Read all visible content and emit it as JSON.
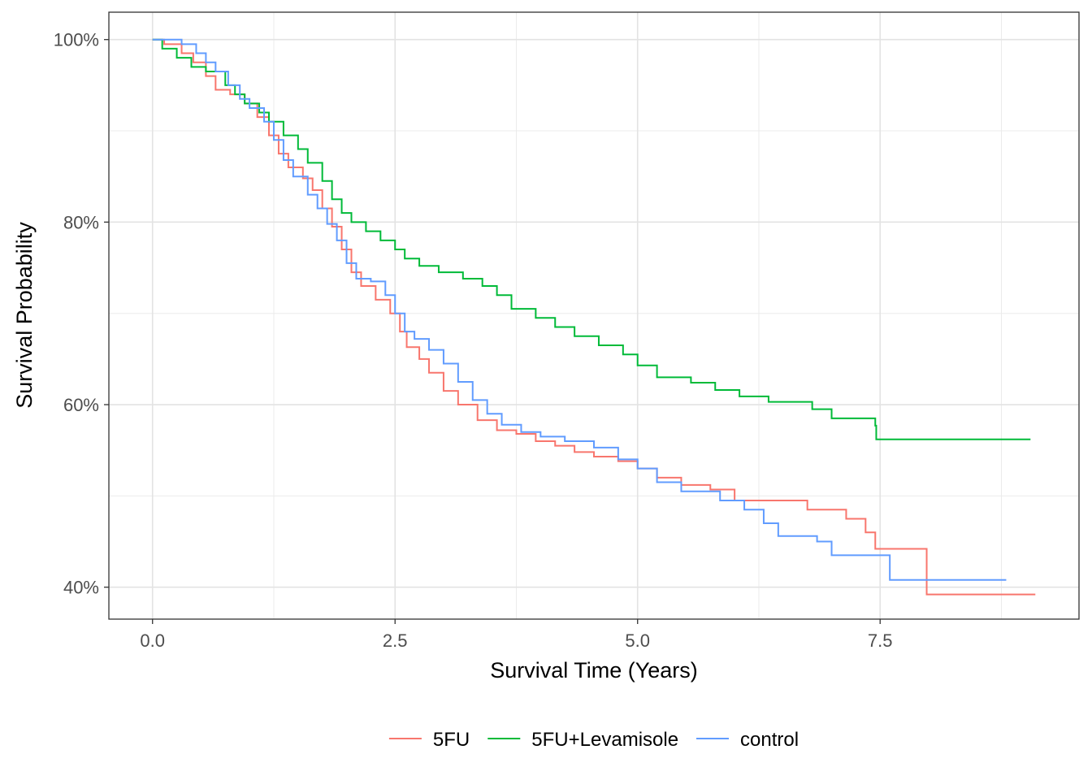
{
  "chart_data": {
    "type": "line",
    "step": true,
    "title": "",
    "xlabel": "Survival Time (Years)",
    "ylabel": "Survival Probability",
    "xlim": [
      -0.45,
      9.55
    ],
    "ylim": [
      0.365,
      1.03
    ],
    "x_ticks": [
      0,
      2.5,
      5,
      7.5
    ],
    "x_tick_labels": [
      "0.0",
      "2.5",
      "5.0",
      "7.5"
    ],
    "y_ticks": [
      0.4,
      0.6,
      0.8,
      1.0
    ],
    "y_tick_labels": [
      "40%",
      "60%",
      "80%",
      "100%"
    ],
    "grid": true,
    "legend_position": "bottom",
    "series": [
      {
        "name": "5FU",
        "color": "#F8766D",
        "points": [
          [
            0.0,
            1.0
          ],
          [
            0.12,
            0.995
          ],
          [
            0.3,
            0.985
          ],
          [
            0.42,
            0.975
          ],
          [
            0.55,
            0.96
          ],
          [
            0.65,
            0.945
          ],
          [
            0.8,
            0.94
          ],
          [
            0.95,
            0.93
          ],
          [
            1.08,
            0.915
          ],
          [
            1.2,
            0.895
          ],
          [
            1.3,
            0.875
          ],
          [
            1.4,
            0.86
          ],
          [
            1.55,
            0.848
          ],
          [
            1.65,
            0.835
          ],
          [
            1.75,
            0.815
          ],
          [
            1.85,
            0.795
          ],
          [
            1.95,
            0.77
          ],
          [
            2.05,
            0.745
          ],
          [
            2.15,
            0.73
          ],
          [
            2.3,
            0.715
          ],
          [
            2.45,
            0.7
          ],
          [
            2.55,
            0.68
          ],
          [
            2.62,
            0.663
          ],
          [
            2.75,
            0.65
          ],
          [
            2.85,
            0.635
          ],
          [
            3.0,
            0.615
          ],
          [
            3.15,
            0.6
          ],
          [
            3.35,
            0.583
          ],
          [
            3.55,
            0.572
          ],
          [
            3.75,
            0.568
          ],
          [
            3.95,
            0.56
          ],
          [
            4.15,
            0.555
          ],
          [
            4.35,
            0.548
          ],
          [
            4.55,
            0.543
          ],
          [
            4.8,
            0.538
          ],
          [
            5.0,
            0.53
          ],
          [
            5.2,
            0.52
          ],
          [
            5.45,
            0.512
          ],
          [
            5.75,
            0.507
          ],
          [
            6.0,
            0.495
          ],
          [
            6.75,
            0.485
          ],
          [
            7.15,
            0.475
          ],
          [
            7.35,
            0.46
          ],
          [
            7.45,
            0.442
          ],
          [
            7.98,
            0.392
          ],
          [
            9.1,
            0.392
          ]
        ]
      },
      {
        "name": "5FU+Levamisole",
        "color": "#00BA38",
        "points": [
          [
            0.0,
            1.0
          ],
          [
            0.1,
            0.99
          ],
          [
            0.25,
            0.98
          ],
          [
            0.4,
            0.97
          ],
          [
            0.55,
            0.965
          ],
          [
            0.75,
            0.95
          ],
          [
            0.85,
            0.94
          ],
          [
            0.95,
            0.93
          ],
          [
            1.1,
            0.92
          ],
          [
            1.2,
            0.91
          ],
          [
            1.35,
            0.895
          ],
          [
            1.5,
            0.88
          ],
          [
            1.6,
            0.865
          ],
          [
            1.75,
            0.845
          ],
          [
            1.85,
            0.825
          ],
          [
            1.95,
            0.81
          ],
          [
            2.05,
            0.8
          ],
          [
            2.2,
            0.79
          ],
          [
            2.35,
            0.78
          ],
          [
            2.5,
            0.77
          ],
          [
            2.6,
            0.76
          ],
          [
            2.75,
            0.752
          ],
          [
            2.95,
            0.745
          ],
          [
            3.2,
            0.738
          ],
          [
            3.4,
            0.73
          ],
          [
            3.55,
            0.72
          ],
          [
            3.7,
            0.705
          ],
          [
            3.95,
            0.695
          ],
          [
            4.15,
            0.685
          ],
          [
            4.35,
            0.675
          ],
          [
            4.6,
            0.665
          ],
          [
            4.85,
            0.655
          ],
          [
            5.0,
            0.643
          ],
          [
            5.2,
            0.63
          ],
          [
            5.55,
            0.624
          ],
          [
            5.8,
            0.616
          ],
          [
            6.05,
            0.609
          ],
          [
            6.35,
            0.603
          ],
          [
            6.8,
            0.595
          ],
          [
            7.0,
            0.585
          ],
          [
            7.45,
            0.577
          ],
          [
            7.46,
            0.562
          ],
          [
            9.05,
            0.562
          ]
        ]
      },
      {
        "name": "control",
        "color": "#619CFF",
        "points": [
          [
            0.0,
            1.0
          ],
          [
            0.3,
            0.995
          ],
          [
            0.45,
            0.985
          ],
          [
            0.55,
            0.975
          ],
          [
            0.65,
            0.965
          ],
          [
            0.78,
            0.95
          ],
          [
            0.9,
            0.935
          ],
          [
            1.0,
            0.925
          ],
          [
            1.15,
            0.91
          ],
          [
            1.25,
            0.89
          ],
          [
            1.35,
            0.868
          ],
          [
            1.45,
            0.85
          ],
          [
            1.6,
            0.83
          ],
          [
            1.7,
            0.815
          ],
          [
            1.8,
            0.798
          ],
          [
            1.9,
            0.78
          ],
          [
            2.0,
            0.755
          ],
          [
            2.1,
            0.738
          ],
          [
            2.25,
            0.735
          ],
          [
            2.4,
            0.72
          ],
          [
            2.5,
            0.7
          ],
          [
            2.6,
            0.68
          ],
          [
            2.7,
            0.672
          ],
          [
            2.85,
            0.66
          ],
          [
            3.0,
            0.645
          ],
          [
            3.15,
            0.625
          ],
          [
            3.3,
            0.605
          ],
          [
            3.45,
            0.59
          ],
          [
            3.6,
            0.578
          ],
          [
            3.8,
            0.57
          ],
          [
            4.0,
            0.565
          ],
          [
            4.25,
            0.56
          ],
          [
            4.55,
            0.553
          ],
          [
            4.8,
            0.54
          ],
          [
            5.0,
            0.53
          ],
          [
            5.2,
            0.515
          ],
          [
            5.45,
            0.505
          ],
          [
            5.85,
            0.495
          ],
          [
            6.1,
            0.485
          ],
          [
            6.3,
            0.47
          ],
          [
            6.45,
            0.456
          ],
          [
            6.85,
            0.45
          ],
          [
            7.0,
            0.435
          ],
          [
            7.6,
            0.408
          ],
          [
            8.8,
            0.408
          ]
        ]
      }
    ]
  }
}
